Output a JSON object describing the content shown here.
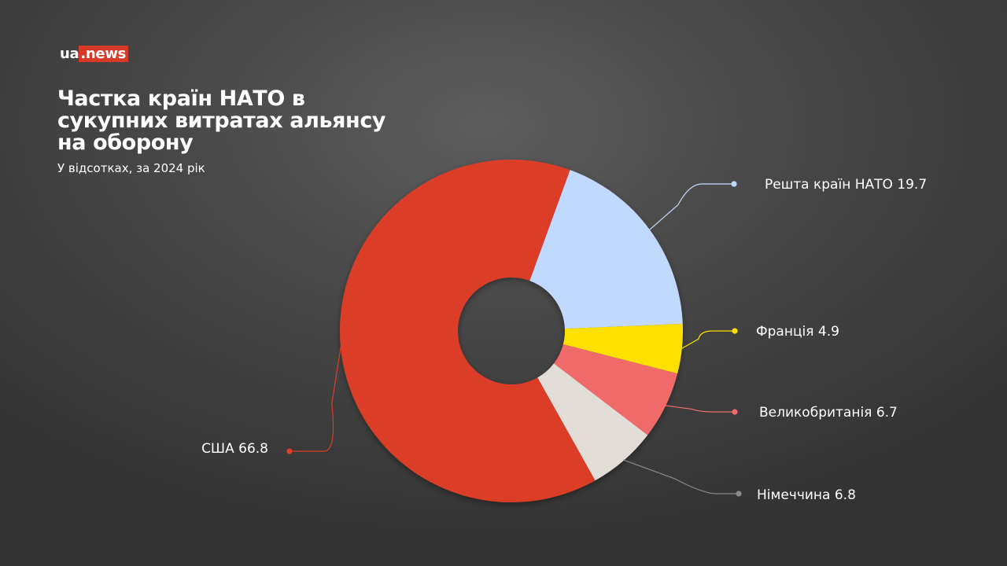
{
  "logo": {
    "ua": "ua",
    "news": ".news",
    "accent_color": "#d63a26"
  },
  "chart_data": {
    "type": "pie",
    "variant": "donut",
    "title": "Частка країн НАТО в сукупних витратах альянсу на оборону",
    "subtitle": "У відсотках, за 2024 рік",
    "slices": [
      {
        "label": "Решта країн НАТО 19.7",
        "name": "Решта країн НАТО",
        "value": 19.7,
        "color": "#c2d9ff",
        "line_color": "#c2d9ff"
      },
      {
        "label": "Франція 4.9",
        "name": "Франція",
        "value": 4.9,
        "color": "#fde000",
        "line_color": "#fde000"
      },
      {
        "label": "Великобританія 6.7",
        "name": "Великобританія",
        "value": 6.7,
        "color": "#f06a6a",
        "line_color": "#f06a6a"
      },
      {
        "label": "Німеччина 6.8",
        "name": "Німеччина",
        "value": 6.8,
        "color": "#e3ddd8",
        "line_color": "#8a8a8a"
      },
      {
        "label": "США 66.8",
        "name": "США",
        "value": 66.8,
        "color": "#db3d28",
        "line_color": "#db3d28"
      }
    ]
  }
}
